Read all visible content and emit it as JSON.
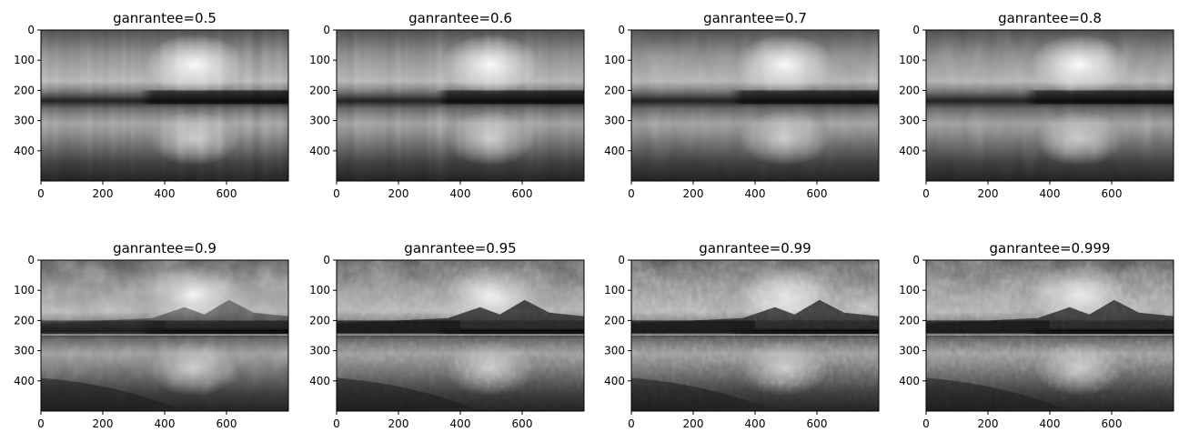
{
  "chart_data": [
    {
      "type": "heatmap",
      "title": "ganrantee=0.5",
      "x_ticks": [
        0,
        200,
        400,
        600
      ],
      "y_ticks": [
        0,
        100,
        200,
        300,
        400
      ],
      "xlim": [
        0,
        800
      ],
      "ylim": [
        500,
        0
      ],
      "colormap": "gray",
      "detail": "very blurry, strong vertical streaks",
      "grid": false
    },
    {
      "type": "heatmap",
      "title": "ganrantee=0.6",
      "x_ticks": [
        0,
        200,
        400,
        600
      ],
      "y_ticks": [
        0,
        100,
        200,
        300,
        400
      ],
      "xlim": [
        0,
        800
      ],
      "ylim": [
        500,
        0
      ],
      "colormap": "gray",
      "detail": "very blurry, vertical streaks",
      "grid": false
    },
    {
      "type": "heatmap",
      "title": "ganrantee=0.7",
      "x_ticks": [
        0,
        200,
        400,
        600
      ],
      "y_ticks": [
        0,
        100,
        200,
        300,
        400
      ],
      "xlim": [
        0,
        800
      ],
      "ylim": [
        500,
        0
      ],
      "colormap": "gray",
      "detail": "blurry, blocky",
      "grid": false
    },
    {
      "type": "heatmap",
      "title": "ganrantee=0.8",
      "x_ticks": [
        0,
        200,
        400,
        600
      ],
      "y_ticks": [
        0,
        100,
        200,
        300,
        400
      ],
      "xlim": [
        0,
        800
      ],
      "ylim": [
        500,
        0
      ],
      "colormap": "gray",
      "detail": "blurry, blocky",
      "grid": false
    },
    {
      "type": "heatmap",
      "title": "ganrantee=0.9",
      "x_ticks": [
        0,
        200,
        400,
        600
      ],
      "y_ticks": [
        0,
        100,
        200,
        300,
        400
      ],
      "xlim": [
        0,
        800
      ],
      "ylim": [
        500,
        0
      ],
      "colormap": "gray",
      "detail": "landscape visible, some blur",
      "grid": false
    },
    {
      "type": "heatmap",
      "title": "ganrantee=0.95",
      "x_ticks": [
        0,
        200,
        400,
        600
      ],
      "y_ticks": [
        0,
        100,
        200,
        300,
        400
      ],
      "xlim": [
        0,
        800
      ],
      "ylim": [
        500,
        0
      ],
      "colormap": "gray",
      "detail": "landscape with mountains, trees and reflection",
      "grid": false
    },
    {
      "type": "heatmap",
      "title": "ganrantee=0.99",
      "x_ticks": [
        0,
        200,
        400,
        600
      ],
      "y_ticks": [
        0,
        100,
        200,
        300,
        400
      ],
      "xlim": [
        0,
        800
      ],
      "ylim": [
        500,
        0
      ],
      "colormap": "gray",
      "detail": "sharp landscape with mountains, trees and reflection",
      "grid": false
    },
    {
      "type": "heatmap",
      "title": "ganrantee=0.999",
      "x_ticks": [
        0,
        200,
        400,
        600
      ],
      "y_ticks": [
        0,
        100,
        200,
        300,
        400
      ],
      "xlim": [
        0,
        800
      ],
      "ylim": [
        500,
        0
      ],
      "colormap": "gray",
      "detail": "sharp landscape with mountains, trees and reflection",
      "grid": false
    }
  ]
}
